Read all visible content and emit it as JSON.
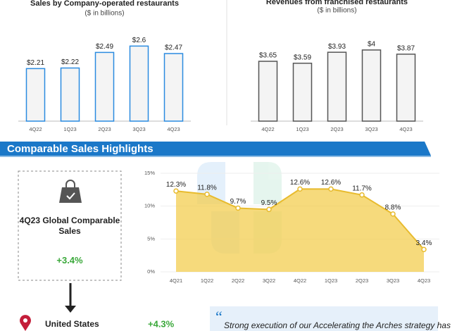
{
  "chart_data": [
    {
      "type": "bar",
      "title": "Sales by Company-operated restaurants",
      "subtitle": "($ in billions)",
      "categories": [
        "4Q22",
        "1Q23",
        "2Q23",
        "3Q23",
        "4Q23"
      ],
      "values": [
        2.21,
        2.22,
        2.49,
        2.6,
        2.47
      ],
      "value_labels": [
        "$2.21",
        "$2.22",
        "$2.49",
        "$2.6",
        "$2.47"
      ],
      "color": "#2a8be0",
      "ylim": [
        1.3,
        2.8
      ]
    },
    {
      "type": "bar",
      "title": "Revenues from franchised restaurants",
      "subtitle": "($ in billions)",
      "categories": [
        "4Q22",
        "1Q23",
        "2Q23",
        "3Q23",
        "4Q23"
      ],
      "values": [
        3.65,
        3.59,
        3.93,
        4,
        3.87
      ],
      "value_labels": [
        "$3.65",
        "$3.59",
        "$3.93",
        "$4",
        "$3.87"
      ],
      "color": "#555555",
      "ylim": [
        1.8,
        4.5
      ]
    },
    {
      "type": "area",
      "categories": [
        "4Q21",
        "1Q22",
        "2Q22",
        "3Q22",
        "4Q22",
        "1Q23",
        "2Q23",
        "3Q23",
        "4Q23"
      ],
      "values": [
        12.3,
        11.8,
        9.7,
        9.5,
        12.6,
        12.6,
        11.7,
        8.8,
        3.4
      ],
      "value_labels": [
        "12.3%",
        "11.8%",
        "9.7%",
        "9.5%",
        "12.6%",
        "12.6%",
        "11.7%",
        "8.8%",
        "3.4%"
      ],
      "color": "#f3cd50",
      "ylim": [
        0,
        15
      ],
      "yticks": [
        {
          "value": 0,
          "label": "0%"
        },
        {
          "value": 5,
          "label": "5%"
        },
        {
          "value": 10,
          "label": "10%"
        },
        {
          "value": 15,
          "label": "15%"
        }
      ],
      "grid": true
    }
  ],
  "section_title": "Comparable Sales Highlights",
  "highlight": {
    "label": "4Q23 Global Comparable Sales",
    "value": "+3.4%"
  },
  "region": {
    "label": "United States",
    "value": "+4.3%"
  },
  "quote": "Strong execution of our Accelerating the Arches strategy has"
}
